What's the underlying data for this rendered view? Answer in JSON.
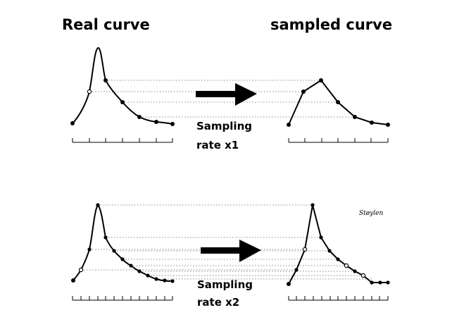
{
  "headings": {
    "left": "Real curve",
    "right": "sampled curve"
  },
  "panels": [
    {
      "caption_line1": "Sampling",
      "caption_line2": "rate x1"
    },
    {
      "caption_line1": "Sampling",
      "caption_line2": "rate x2"
    }
  ],
  "signature": "Støylen"
}
